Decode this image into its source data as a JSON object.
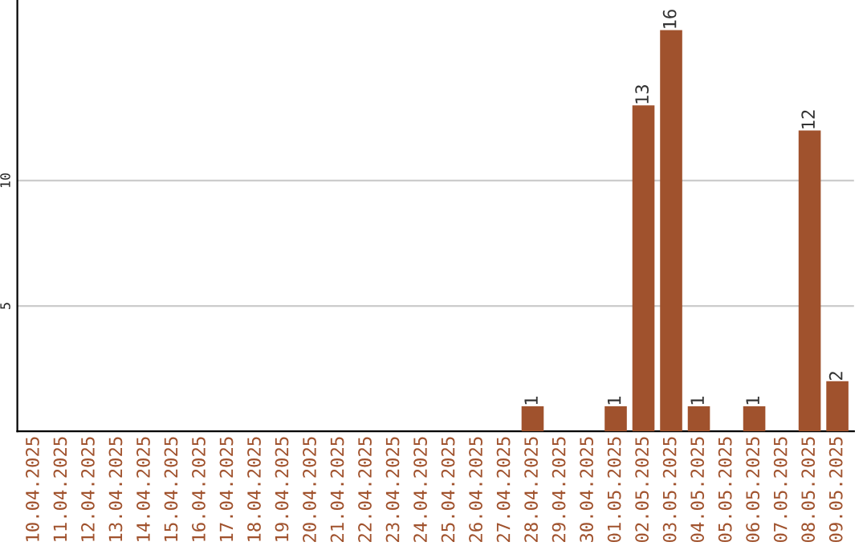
{
  "chart_data": {
    "type": "bar",
    "categories": [
      "10.04.2025",
      "11.04.2025",
      "12.04.2025",
      "13.04.2025",
      "14.04.2025",
      "15.04.2025",
      "16.04.2025",
      "17.04.2025",
      "18.04.2025",
      "19.04.2025",
      "20.04.2025",
      "21.04.2025",
      "22.04.2025",
      "23.04.2025",
      "24.04.2025",
      "25.04.2025",
      "26.04.2025",
      "27.04.2025",
      "28.04.2025",
      "29.04.2025",
      "30.04.2025",
      "01.05.2025",
      "02.05.2025",
      "03.05.2025",
      "04.05.2025",
      "05.05.2025",
      "06.05.2025",
      "07.05.2025",
      "08.05.2025",
      "09.05.2025"
    ],
    "values": [
      0,
      0,
      0,
      0,
      0,
      0,
      0,
      0,
      0,
      0,
      0,
      0,
      0,
      0,
      0,
      0,
      0,
      0,
      1,
      0,
      0,
      1,
      13,
      16,
      1,
      0,
      1,
      0,
      12,
      2
    ],
    "value_labels": [
      null,
      null,
      null,
      null,
      null,
      null,
      null,
      null,
      null,
      null,
      null,
      null,
      null,
      null,
      null,
      null,
      null,
      null,
      "1",
      null,
      null,
      "1",
      "13",
      "16",
      "1",
      null,
      "1",
      null,
      "12",
      "2"
    ],
    "color": "#a0522d",
    "ylim": [
      0,
      17.2
    ],
    "yticks": [
      5,
      10
    ],
    "grid": "y"
  }
}
